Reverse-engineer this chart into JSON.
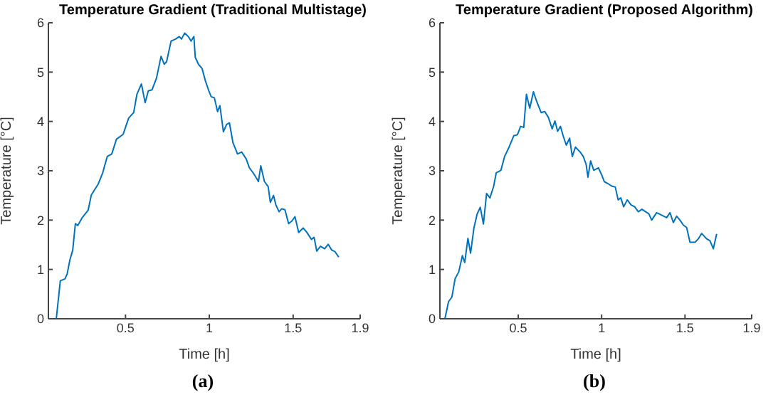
{
  "chart_data": [
    {
      "type": "line",
      "title": "Temperature Gradient (Traditional Multistage)",
      "xlabel": "Time [h]",
      "ylabel": "Temperature [°C]",
      "annotations": [
        "(a)"
      ],
      "xlim": [
        0.04,
        1.9
      ],
      "ylim": [
        0,
        6
      ],
      "xticks": [
        0.5,
        1,
        1.5,
        1.9
      ],
      "yticks": [
        0,
        1,
        2,
        3,
        4,
        5,
        6
      ],
      "grid": false,
      "legend": false,
      "series": [
        {
          "color": "#0072bd",
          "x": [
            0.087,
            0.111,
            0.139,
            0.152,
            0.168,
            0.185,
            0.201,
            0.215,
            0.242,
            0.277,
            0.296,
            0.337,
            0.364,
            0.391,
            0.418,
            0.446,
            0.486,
            0.519,
            0.549,
            0.568,
            0.595,
            0.617,
            0.636,
            0.658,
            0.685,
            0.712,
            0.731,
            0.745,
            0.772,
            0.799,
            0.821,
            0.834,
            0.853,
            0.875,
            0.891,
            0.908,
            0.916,
            0.935,
            0.957,
            0.976,
            0.995,
            1.011,
            1.03,
            1.049,
            1.063,
            1.084,
            1.103,
            1.12,
            1.141,
            1.168,
            1.193,
            1.22,
            1.239,
            1.261,
            1.283,
            1.293,
            1.307,
            1.329,
            1.351,
            1.364,
            1.383,
            1.397,
            1.416,
            1.432,
            1.451,
            1.473,
            1.492,
            1.511,
            1.533,
            1.56,
            1.582,
            1.609,
            1.625,
            1.641,
            1.663,
            1.688,
            1.709,
            1.731,
            1.75,
            1.772
          ],
          "values": [
            0,
            0.77,
            0.81,
            0.91,
            1.19,
            1.39,
            1.93,
            1.89,
            2.05,
            2.2,
            2.51,
            2.73,
            2.96,
            3.29,
            3.34,
            3.64,
            3.74,
            4.07,
            4.18,
            4.55,
            4.76,
            4.38,
            4.62,
            4.64,
            4.88,
            5.32,
            5.16,
            5.21,
            5.63,
            5.67,
            5.72,
            5.67,
            5.79,
            5.72,
            5.63,
            5.72,
            5.3,
            5.16,
            5.07,
            4.83,
            4.64,
            4.5,
            4.48,
            4.2,
            4.32,
            3.79,
            3.94,
            3.97,
            3.57,
            3.34,
            3.38,
            3.24,
            3.06,
            2.96,
            2.84,
            2.78,
            3.1,
            2.78,
            2.68,
            2.36,
            2.5,
            2.31,
            2.17,
            2.23,
            2.21,
            1.93,
            1.98,
            2.07,
            1.75,
            1.84,
            1.75,
            1.61,
            1.65,
            1.37,
            1.47,
            1.42,
            1.51,
            1.39,
            1.36,
            1.25
          ]
        }
      ]
    },
    {
      "type": "line",
      "title": "Temperature Gradient (Proposed Algorithm)",
      "xlabel": "Time [h]",
      "ylabel": "Temperature [°C]",
      "annotations": [
        "(b)"
      ],
      "xlim": [
        0.03,
        1.9
      ],
      "ylim": [
        0,
        6
      ],
      "xticks": [
        0.5,
        1,
        1.5,
        1.9
      ],
      "yticks": [
        0,
        1,
        2,
        3,
        4,
        5,
        6
      ],
      "grid": false,
      "legend": false,
      "series": [
        {
          "color": "#0072bd",
          "x": [
            0.06,
            0.082,
            0.102,
            0.121,
            0.143,
            0.165,
            0.179,
            0.198,
            0.214,
            0.234,
            0.253,
            0.272,
            0.291,
            0.31,
            0.33,
            0.352,
            0.368,
            0.396,
            0.418,
            0.445,
            0.473,
            0.495,
            0.514,
            0.533,
            0.549,
            0.569,
            0.591,
            0.61,
            0.637,
            0.659,
            0.681,
            0.703,
            0.72,
            0.736,
            0.753,
            0.769,
            0.788,
            0.808,
            0.824,
            0.843,
            0.871,
            0.89,
            0.907,
            0.918,
            0.934,
            0.953,
            0.981,
            1.0,
            1.016,
            1.038,
            1.06,
            1.082,
            1.099,
            1.115,
            1.132,
            1.154,
            1.176,
            1.198,
            1.22,
            1.242,
            1.264,
            1.283,
            1.3,
            1.33,
            1.36,
            1.39,
            1.41,
            1.43,
            1.45,
            1.47,
            1.49,
            1.51,
            1.53,
            1.56,
            1.58,
            1.6,
            1.63,
            1.65,
            1.67,
            1.69
          ],
          "values": [
            0,
            0.35,
            0.44,
            0.81,
            0.95,
            1.28,
            1.14,
            1.63,
            1.33,
            1.84,
            2.12,
            2.26,
            1.92,
            2.54,
            2.45,
            2.68,
            2.96,
            3.01,
            3.29,
            3.48,
            3.71,
            3.73,
            3.9,
            3.88,
            4.55,
            4.27,
            4.6,
            4.41,
            4.18,
            4.2,
            4.08,
            3.85,
            4.01,
            3.8,
            3.9,
            3.71,
            3.52,
            3.66,
            3.29,
            3.48,
            3.38,
            3.29,
            3.13,
            2.87,
            3.2,
            3.01,
            3.06,
            2.92,
            2.78,
            2.74,
            2.69,
            2.67,
            2.41,
            2.45,
            2.27,
            2.41,
            2.31,
            2.27,
            2.17,
            2.22,
            2.17,
            2.13,
            2.0,
            2.15,
            2.1,
            2.05,
            2.15,
            1.95,
            2.08,
            2.0,
            1.9,
            1.85,
            1.55,
            1.55,
            1.62,
            1.73,
            1.62,
            1.58,
            1.42,
            1.72
          ]
        }
      ]
    }
  ]
}
